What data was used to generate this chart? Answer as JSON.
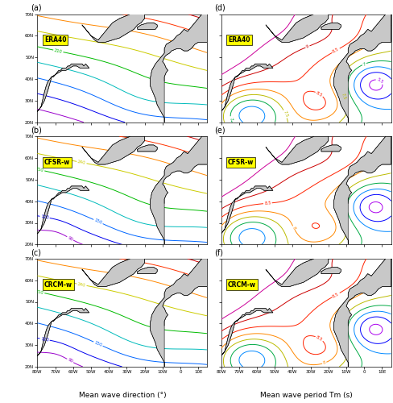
{
  "figsize": [
    4.88,
    5.0
  ],
  "dpi": 100,
  "lon_min": -80,
  "lon_max": 15,
  "lat_min": 20,
  "lat_max": 70,
  "xlabel_left": "Mean wave direction (°)",
  "xlabel_right": "Mean wave period Tm (s)",
  "panel_labels": [
    "(a)",
    "(b)",
    "(c)",
    "(d)",
    "(e)",
    "(f)"
  ],
  "dataset_labels": [
    "ERA40",
    "CFSR-w",
    "CRCM-w",
    "ERA40",
    "CFSR-w",
    "CRCM-w"
  ],
  "panel_types": [
    "direction",
    "direction",
    "direction",
    "period",
    "period",
    "period"
  ],
  "dir_levels": [
    90,
    120,
    150,
    180,
    210,
    240,
    270,
    300,
    330
  ],
  "per_levels": [
    5.0,
    5.5,
    6.0,
    6.5,
    7.0,
    7.5,
    8.0,
    8.5,
    9.0,
    9.5
  ],
  "dir_colors": {
    "90": "#9900CC",
    "120": "#0000EE",
    "150": "#0066FF",
    "180": "#00BBBB",
    "210": "#00BB00",
    "240": "#CCCC00",
    "270": "#FF8800",
    "300": "#FF3300",
    "330": "#CC0000"
  },
  "per_colors": {
    "5.0": "#880099",
    "5.5": "#AA00EE",
    "6.0": "#0000FF",
    "6.5": "#0088FF",
    "7.0": "#00AA44",
    "7.5": "#BBBB00",
    "8.0": "#FF8800",
    "8.5": "#FF2200",
    "9.0": "#CC0000",
    "9.5": "#CC0099"
  },
  "lat_ticks": [
    20,
    30,
    40,
    50,
    60,
    70
  ],
  "lon_ticks": [
    -80,
    -70,
    -60,
    -50,
    -40,
    -30,
    -20,
    -10,
    0,
    10
  ]
}
